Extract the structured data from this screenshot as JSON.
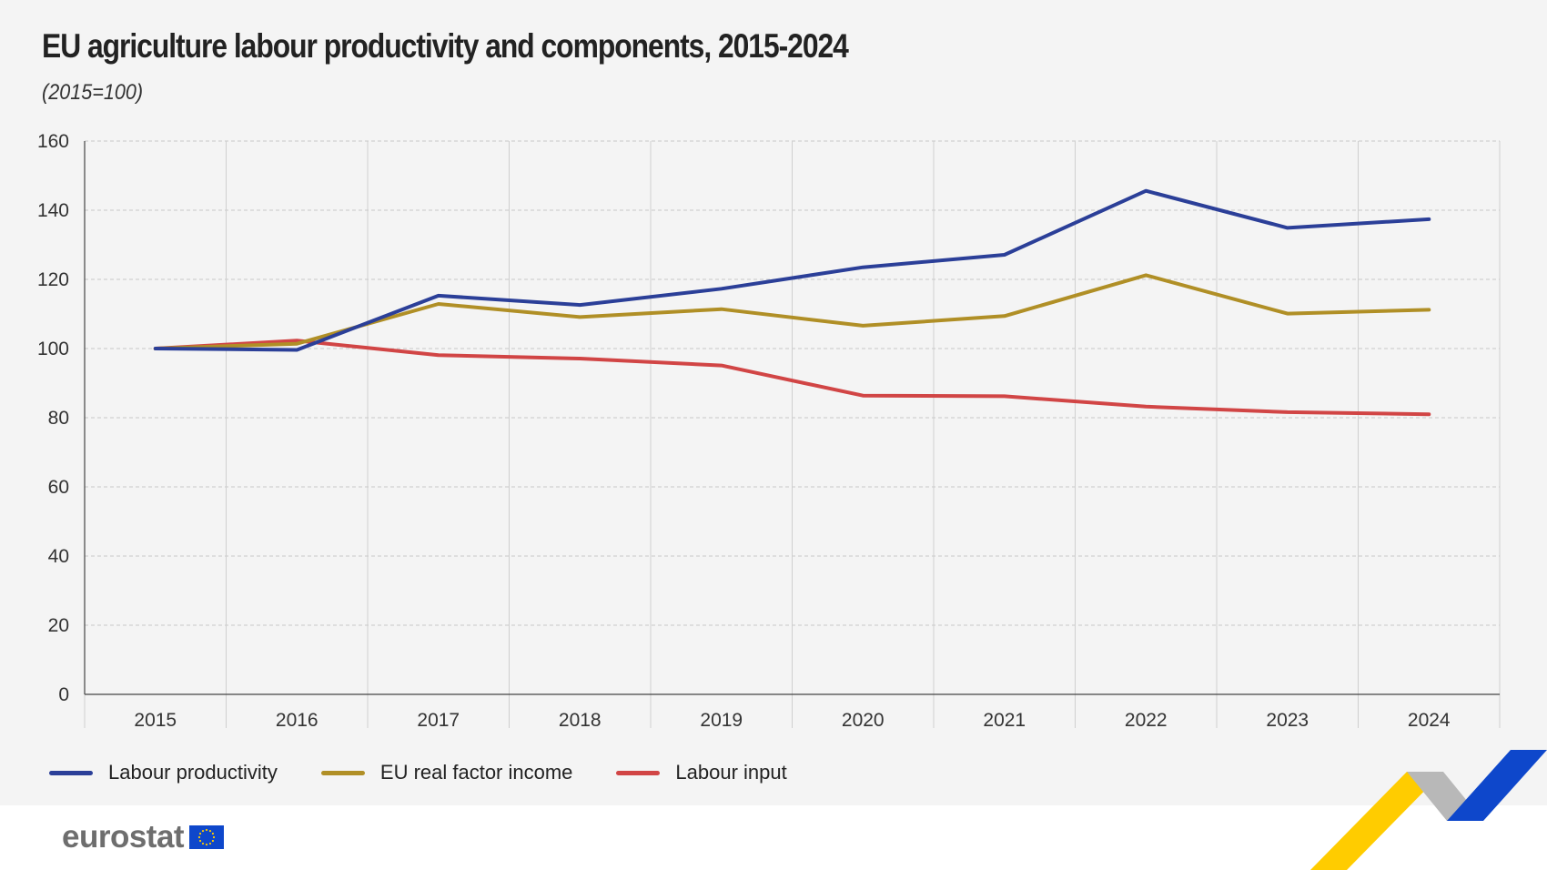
{
  "title": "EU agriculture labour productivity and components, 2015-2024",
  "subtitle": "(2015=100)",
  "brand": {
    "logo_text": "eurostat"
  },
  "colors": {
    "background": "#f4f4f4",
    "labour_productivity": "#2b3f98",
    "eu_real_factor_income": "#b08f26",
    "labour_input": "#d14545",
    "ribbon_blue": "#0e47cb",
    "ribbon_yellow": "#ffcc00",
    "ribbon_grey": "#b8b8b8"
  },
  "chart_data": {
    "type": "line",
    "x": [
      "2015",
      "2016",
      "2017",
      "2018",
      "2019",
      "2020",
      "2021",
      "2022",
      "2023",
      "2024"
    ],
    "ylim": [
      0,
      160
    ],
    "yticks": [
      0,
      20,
      40,
      60,
      80,
      100,
      120,
      140,
      160
    ],
    "grid": true,
    "legend_position": "bottom-left",
    "series": [
      {
        "name": "Labour productivity",
        "color": "#2b3f98",
        "values": [
          100,
          99.6,
          115.3,
          112.6,
          117.3,
          123.5,
          127.1,
          145.6,
          134.9,
          137.4
        ]
      },
      {
        "name": "EU real factor income",
        "color": "#b08f26",
        "values": [
          100,
          101.4,
          112.9,
          109.1,
          111.4,
          106.6,
          109.4,
          121.2,
          110.1,
          111.2
        ]
      },
      {
        "name": "Labour input",
        "color": "#d14545",
        "values": [
          100,
          102.3,
          98.1,
          97.1,
          95.1,
          86.4,
          86.2,
          83.2,
          81.6,
          81.0
        ]
      }
    ]
  }
}
